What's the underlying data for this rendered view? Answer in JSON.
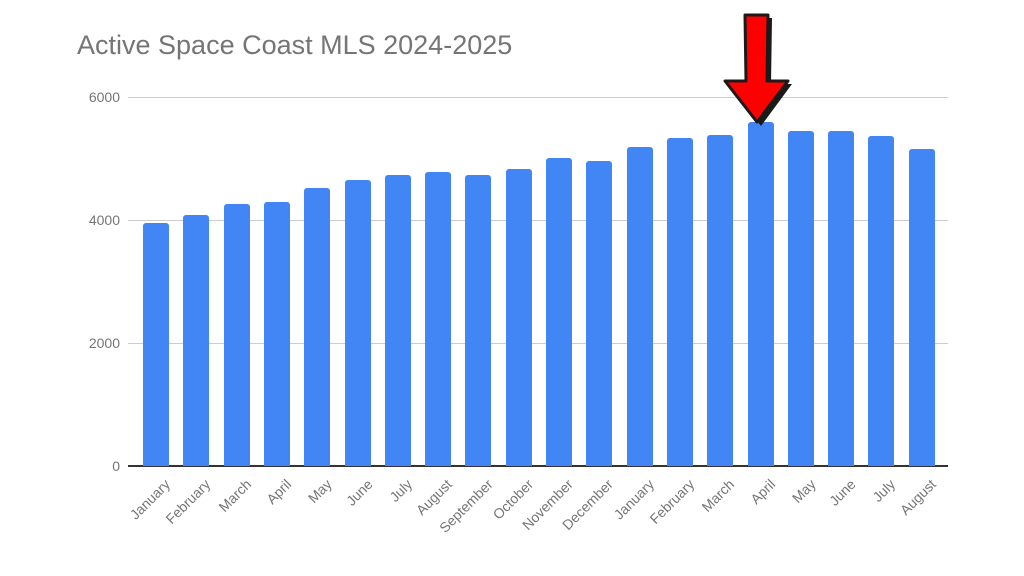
{
  "chart_data": {
    "type": "bar",
    "title": "Active Space Coast MLS 2024-2025",
    "xlabel": "",
    "ylabel": "",
    "ylim": [
      0,
      6000
    ],
    "yticks": [
      0,
      2000,
      4000,
      6000
    ],
    "grid": true,
    "legend": "none",
    "bar_color": "#4285f4",
    "categories": [
      "January",
      "February",
      "March",
      "April",
      "May",
      "June",
      "July",
      "August",
      "September",
      "October",
      "November",
      "December",
      "January",
      "February",
      "March",
      "April",
      "May",
      "June",
      "July",
      "August"
    ],
    "values": [
      3950,
      4075,
      4260,
      4285,
      4525,
      4650,
      4730,
      4780,
      4730,
      4825,
      5010,
      4960,
      5180,
      5330,
      5390,
      5590,
      5440,
      5440,
      5360,
      5155
    ],
    "annotations": [
      {
        "type": "arrow",
        "color": "#ff0000",
        "direction": "down",
        "target_index": 15,
        "target_label": "April"
      }
    ]
  },
  "title": "Active Space Coast MLS 2024-2025",
  "yticks": [
    "0",
    "2000",
    "4000",
    "6000"
  ]
}
